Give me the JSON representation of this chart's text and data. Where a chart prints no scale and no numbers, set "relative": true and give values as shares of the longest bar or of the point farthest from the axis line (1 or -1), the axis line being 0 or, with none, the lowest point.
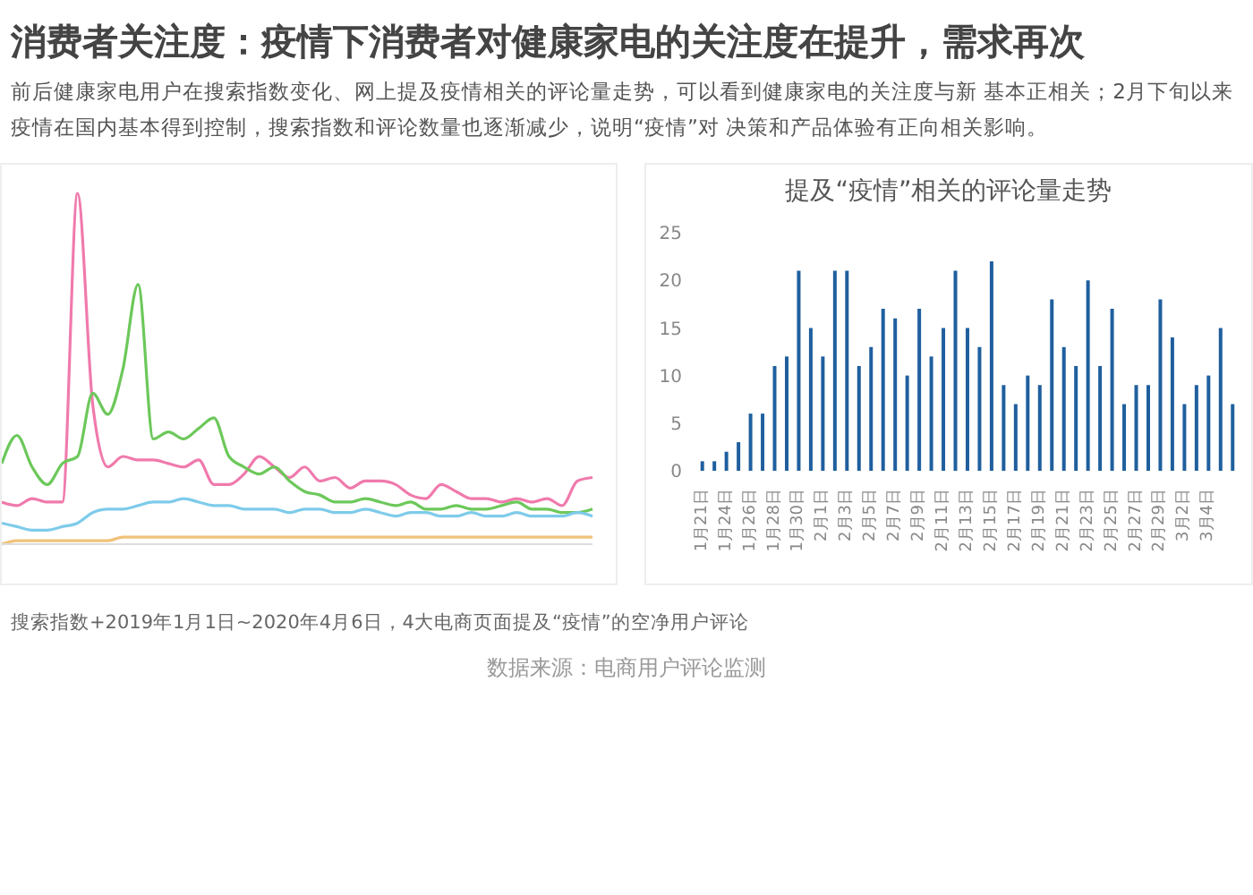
{
  "chart_data": [
    {
      "type": "line",
      "title": "消费者关注度：疫情下消费者对健康家电的关注度在提升，需求再次",
      "subtitle": "前后健康家电用户在搜索指数变化、网上提及疫情相关的评论量走势，可以看到健康家电的关注度与新 基本正相关；2月下旬以来疫情在国内基本得到控制，搜索指数和评论数量也逐渐减少，说明“疫情”对 决策和产品体验有正向相关影响。",
      "relative": true,
      "tick_labels": false,
      "categories": [
        null,
        null,
        null,
        null,
        null,
        null,
        null,
        null,
        null,
        null,
        null,
        null,
        null,
        null,
        null,
        null,
        null,
        null,
        null,
        null,
        null,
        null,
        null,
        null,
        null,
        null,
        null,
        null,
        null,
        null,
        null,
        null,
        null,
        null,
        null,
        null,
        null,
        null,
        null,
        null
      ],
      "series": [
        {
          "color": "#f07aac",
          "values": [
            0.12,
            0.11,
            0.13,
            0.12,
            0.12,
            1.0,
            0.4,
            0.22,
            0.25,
            0.24,
            0.24,
            0.23,
            0.22,
            0.24,
            0.17,
            0.17,
            0.2,
            0.25,
            0.22,
            0.19,
            0.22,
            0.18,
            0.19,
            0.16,
            0.18,
            0.18,
            0.17,
            0.14,
            0.13,
            0.17,
            0.15,
            0.13,
            0.13,
            0.12,
            0.13,
            0.12,
            0.13,
            0.11,
            0.18,
            0.19
          ]
        },
        {
          "color": "#6cc85a",
          "values": [
            0.23,
            0.31,
            0.22,
            0.17,
            0.23,
            0.25,
            0.43,
            0.37,
            0.5,
            0.74,
            0.3,
            0.32,
            0.3,
            0.33,
            0.36,
            0.25,
            0.22,
            0.2,
            0.22,
            0.18,
            0.15,
            0.14,
            0.12,
            0.12,
            0.13,
            0.12,
            0.11,
            0.12,
            0.1,
            0.1,
            0.11,
            0.1,
            0.1,
            0.11,
            0.12,
            0.1,
            0.1,
            0.09,
            0.09,
            0.1
          ]
        },
        {
          "color": "#7ecbea",
          "values": [
            0.06,
            0.05,
            0.04,
            0.04,
            0.05,
            0.06,
            0.09,
            0.1,
            0.1,
            0.11,
            0.12,
            0.12,
            0.13,
            0.12,
            0.11,
            0.11,
            0.1,
            0.1,
            0.1,
            0.09,
            0.1,
            0.1,
            0.09,
            0.09,
            0.1,
            0.09,
            0.08,
            0.09,
            0.09,
            0.08,
            0.08,
            0.09,
            0.08,
            0.08,
            0.09,
            0.08,
            0.08,
            0.08,
            0.09,
            0.08
          ]
        },
        {
          "color": "#f0c27a",
          "values": [
            0,
            0.01,
            0.01,
            0.01,
            0.01,
            0.01,
            0.01,
            0.01,
            0.02,
            0.02,
            0.02,
            0.02,
            0.02,
            0.02,
            0.02,
            0.02,
            0.02,
            0.02,
            0.02,
            0.02,
            0.02,
            0.02,
            0.02,
            0.02,
            0.02,
            0.02,
            0.02,
            0.02,
            0.02,
            0.02,
            0.02,
            0.02,
            0.02,
            0.02,
            0.02,
            0.02,
            0.02,
            0.02,
            0.02,
            0.02
          ]
        }
      ]
    },
    {
      "type": "bar",
      "title": "提及“疫情”相关的评论量走势",
      "color": "#1f5f9e",
      "ylim": [
        0,
        25
      ],
      "yticks": [
        0,
        5,
        10,
        15,
        20,
        25
      ],
      "categories": [
        "1月21日",
        null,
        "1月24日",
        null,
        "1月26日",
        null,
        "1月28日",
        null,
        "1月30日",
        null,
        "2月1日",
        null,
        "2月3日",
        null,
        "2月5日",
        null,
        "2月7日",
        null,
        "2月9日",
        null,
        "2月11日",
        null,
        "2月13日",
        null,
        "2月15日",
        null,
        "2月17日",
        null,
        "2月19日",
        null,
        "2月21日",
        null,
        "2月23日",
        null,
        "2月25日",
        null,
        "2月27日",
        null,
        "2月29日",
        null,
        "3月2日",
        null,
        "3月4日",
        null,
        null
      ],
      "values": [
        1,
        1,
        2,
        3,
        6,
        6,
        11,
        12,
        21,
        15,
        12,
        21,
        21,
        11,
        13,
        17,
        16,
        10,
        17,
        12,
        15,
        21,
        15,
        13,
        22,
        9,
        7,
        10,
        9,
        18,
        13,
        11,
        20,
        11,
        17,
        7,
        9,
        9,
        18,
        14,
        7,
        9,
        10,
        15,
        7
      ],
      "annotations": [
        "搜索指数+2019年1月1日~2020年4月6日，4大电商页面提及“疫情”的空净用户评论",
        "数据来源：电商用户评论监测"
      ]
    }
  ]
}
